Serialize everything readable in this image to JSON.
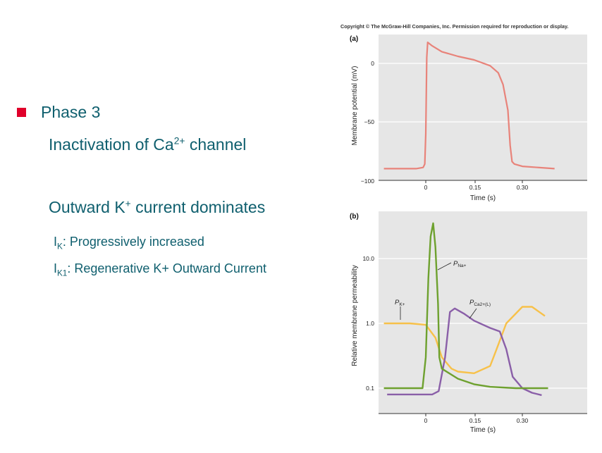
{
  "slide": {
    "bullet_title": "Phase 3",
    "line1": {
      "pre": "Inactivation of Ca",
      "sup": "2+",
      "post": " channel"
    },
    "line2": {
      "pre": "Outward K",
      "sup": "+",
      "post": " current dominates"
    },
    "line3": {
      "main": "I",
      "sub": "K",
      "post": ": Progressively increased"
    },
    "line4": {
      "main": "I",
      "sub": "K1",
      "post": ": Regenerative K+ Outward Current"
    },
    "colors": {
      "bullet": "#e0002a",
      "text": "#0f5f6e"
    }
  },
  "figure": {
    "copyright": "Copyright © The McGraw-Hill Companies, Inc. Permission required for reproduction or display.",
    "colors": {
      "panel_bg": "#e6e6e6",
      "gridline": "#ffffff",
      "ap_curve": "#e8837a",
      "p_na": "#6ea12f",
      "p_k": "#f7c14a",
      "p_ca": "#8a5fa8"
    }
  },
  "chart_data": [
    {
      "type": "line",
      "panel_label": "(a)",
      "xlabel": "Time (s)",
      "ylabel": "Membrane potential (mV)",
      "x_ticks": [
        "0",
        "0.15",
        "0.30"
      ],
      "y_ticks": [
        "0",
        "−50",
        "−100"
      ],
      "xlim": [
        -0.14,
        0.5
      ],
      "ylim": [
        -100,
        22
      ],
      "series": [
        {
          "x": [
            -0.13,
            -0.03,
            -0.008,
            -0.003,
            0.0,
            0.003,
            0.006,
            0.02,
            0.05,
            0.1,
            0.15,
            0.2,
            0.225,
            0.24,
            0.255,
            0.262,
            0.268,
            0.275,
            0.3,
            0.4
          ],
          "y": [
            -90,
            -90,
            -89,
            -86,
            -60,
            5,
            18,
            15,
            10,
            6,
            3,
            -2,
            -8,
            -18,
            -40,
            -70,
            -84,
            -86,
            -88,
            -90
          ]
        }
      ]
    },
    {
      "type": "line",
      "panel_label": "(b)",
      "xlabel": "Time (s)",
      "ylabel": "Relative membrane permeability",
      "x_ticks": [
        "0",
        "0.15",
        "0.30"
      ],
      "y_ticks": [
        "10.0",
        "1.0",
        "0.1"
      ],
      "log_scale_y": true,
      "xlim": [
        -0.14,
        0.5
      ],
      "ylim": [
        0.05,
        50
      ],
      "series": [
        {
          "name_main": "P",
          "name_sub": "Na+",
          "x": [
            -0.13,
            -0.01,
            0.0,
            0.008,
            0.015,
            0.023,
            0.03,
            0.038,
            0.042,
            0.05,
            0.1,
            0.15,
            0.2,
            0.28,
            0.38
          ],
          "y": [
            0.1,
            0.1,
            0.3,
            5,
            22,
            35,
            15,
            2,
            0.3,
            0.2,
            0.14,
            0.115,
            0.105,
            0.1,
            0.1
          ]
        },
        {
          "name_main": "P",
          "name_sub": "K+",
          "x": [
            -0.13,
            -0.05,
            0.0,
            0.03,
            0.05,
            0.08,
            0.1,
            0.15,
            0.2,
            0.22,
            0.25,
            0.3,
            0.33,
            0.37
          ],
          "y": [
            1.0,
            1.0,
            0.95,
            0.6,
            0.3,
            0.2,
            0.18,
            0.17,
            0.22,
            0.4,
            1.0,
            1.8,
            1.8,
            1.3
          ]
        },
        {
          "name_main": "P",
          "name_sub": "Ca2+(L)",
          "x": [
            -0.12,
            -0.01,
            0.02,
            0.04,
            0.06,
            0.075,
            0.09,
            0.12,
            0.15,
            0.2,
            0.23,
            0.25,
            0.27,
            0.3,
            0.33,
            0.36
          ],
          "y": [
            0.08,
            0.08,
            0.08,
            0.09,
            0.3,
            1.5,
            1.7,
            1.4,
            1.1,
            0.85,
            0.75,
            0.4,
            0.15,
            0.1,
            0.085,
            0.078
          ]
        }
      ]
    }
  ]
}
